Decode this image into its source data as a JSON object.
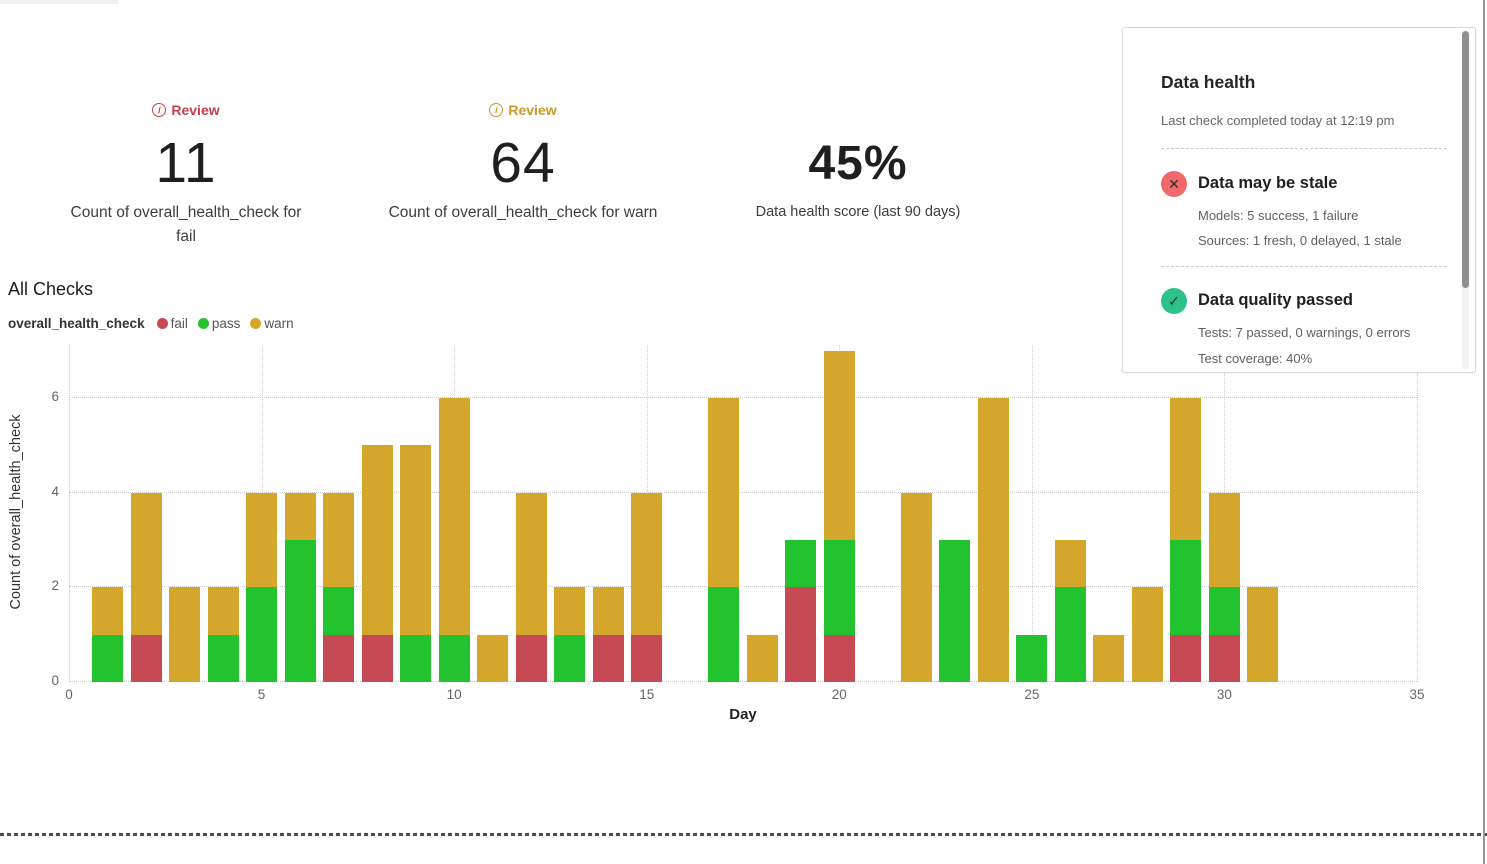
{
  "metrics": [
    {
      "review": "Review",
      "accent": "#c4404e",
      "value": "11",
      "label": "Count of overall_health_check for fail"
    },
    {
      "review": "Review",
      "accent": "#c79a2b",
      "value": "64",
      "label": "Count of overall_health_check for warn"
    },
    {
      "value": "45%",
      "label": "Data health score (last 90 days)"
    }
  ],
  "section_title": "All Checks",
  "legend": {
    "series_name": "overall_health_check",
    "items": [
      {
        "label": "fail",
        "color": "#c54a53"
      },
      {
        "label": "pass",
        "color": "#22c32e"
      },
      {
        "label": "warn",
        "color": "#d4a72c"
      }
    ]
  },
  "health_panel": {
    "title": "Data health",
    "subtitle": "Last check completed today at 12:19 pm",
    "items": [
      {
        "title": "Data may be stale",
        "icon": "x",
        "color": "#f2696c",
        "lines": [
          "Models: 5 success, 1 failure",
          "Sources: 1 fresh, 0 delayed, 1 stale"
        ]
      },
      {
        "title": "Data quality passed",
        "icon": "check",
        "color": "#2ec28a",
        "lines": [
          "Tests: 7 passed, 0 warnings, 0 errors",
          "Test coverage: 40%"
        ]
      }
    ]
  },
  "chart_data": {
    "type": "bar",
    "stacked": true,
    "title": "All Checks",
    "xlabel": "Day",
    "ylabel": "Count of overall_health_check",
    "xlim": [
      0,
      35
    ],
    "ylim": [
      0,
      7
    ],
    "x_ticks": [
      0,
      5,
      10,
      15,
      20,
      25,
      30,
      35
    ],
    "y_ticks": [
      0,
      2,
      4,
      6
    ],
    "grid": "dotted",
    "legend_position": "top-left",
    "x": [
      1,
      2,
      3,
      4,
      5,
      6,
      7,
      8,
      9,
      10,
      11,
      12,
      13,
      14,
      15,
      16,
      17,
      18,
      19,
      20,
      21,
      22,
      23,
      24,
      25,
      26,
      27,
      28,
      29,
      30,
      31
    ],
    "stack_order_bottom_to_top": [
      "fail",
      "pass",
      "warn"
    ],
    "series": [
      {
        "name": "fail",
        "color": "#c54a53",
        "values": [
          0,
          1,
          0,
          0,
          0,
          0,
          1,
          1,
          0,
          0,
          0,
          1,
          0,
          1,
          1,
          0,
          0,
          0,
          2,
          1,
          0,
          0,
          0,
          0,
          0,
          0,
          0,
          0,
          1,
          1,
          0
        ]
      },
      {
        "name": "pass",
        "color": "#22c32e",
        "values": [
          1,
          0,
          0,
          1,
          2,
          3,
          1,
          0,
          1,
          1,
          0,
          0,
          1,
          0,
          0,
          0,
          2,
          0,
          1,
          2,
          0,
          0,
          3,
          0,
          1,
          2,
          0,
          0,
          2,
          1,
          0
        ]
      },
      {
        "name": "warn",
        "color": "#d4a72c",
        "values": [
          1,
          3,
          2,
          1,
          2,
          1,
          2,
          4,
          4,
          5,
          1,
          3,
          1,
          1,
          3,
          0,
          4,
          1,
          0,
          4,
          0,
          4,
          0,
          6,
          0,
          1,
          1,
          2,
          3,
          2,
          2
        ]
      }
    ],
    "series_totals": {
      "fail": 11,
      "pass": 25,
      "warn": 64
    }
  }
}
